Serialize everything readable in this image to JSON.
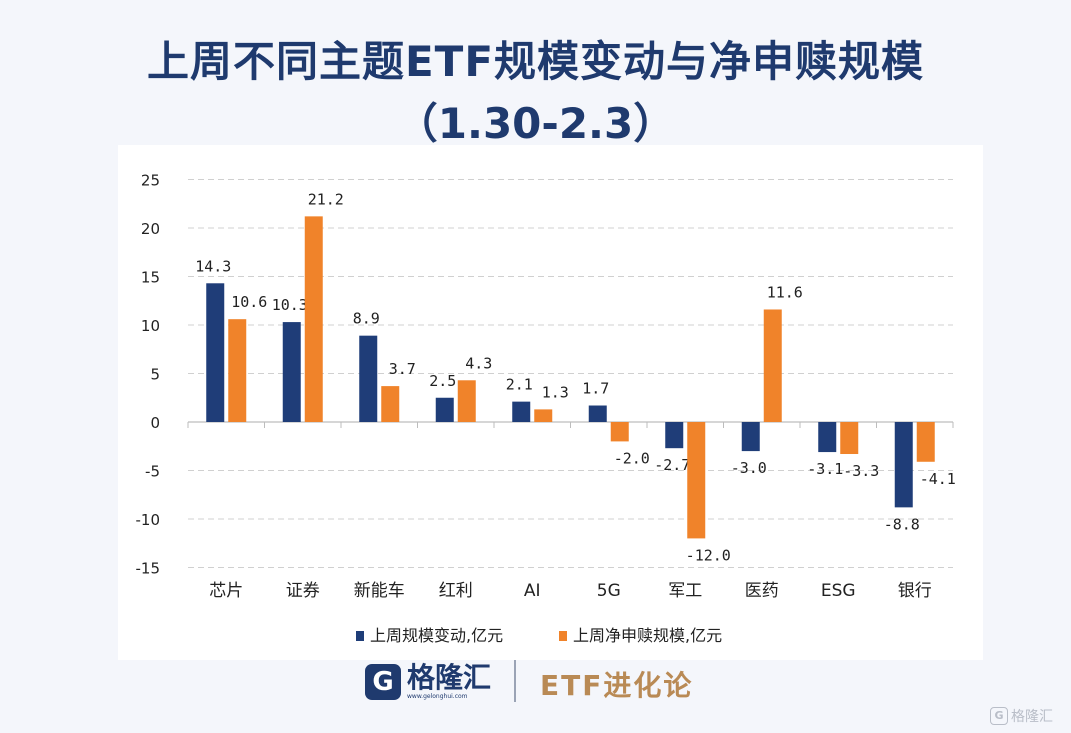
{
  "title_line1": "上周不同主题ETF规模变动与净申赎规模",
  "title_line2": "（1.30-2.3）",
  "chart_data": {
    "type": "bar",
    "title": "上周不同主题ETF规模变动与净申赎规模（1.30-2.3）",
    "categories": [
      "芯片",
      "证券",
      "新能车",
      "红利",
      "AI",
      "5G",
      "军工",
      "医药",
      "ESG",
      "银行"
    ],
    "series": [
      {
        "name": "上周规模变动,亿元",
        "color": "#1f3d78",
        "values": [
          14.3,
          10.3,
          8.9,
          2.5,
          2.1,
          1.7,
          -2.7,
          -3.0,
          -3.1,
          -8.8
        ],
        "labels": [
          "14.3",
          "10.3",
          "8.9",
          "2.5",
          "2.1",
          "1.7",
          "-2.7",
          "-3.0",
          "-3.1",
          "-8.8"
        ]
      },
      {
        "name": "上周净申赎规模,亿元",
        "color": "#f0832a",
        "values": [
          10.6,
          21.2,
          3.7,
          4.3,
          1.3,
          -2.0,
          -12.0,
          11.6,
          -3.3,
          -4.1
        ],
        "labels": [
          "10.6",
          "21.2",
          "3.7",
          "4.3",
          "1.3",
          "-2.0",
          "-12.0",
          "11.6",
          "-3.3",
          "-4.1"
        ]
      }
    ],
    "yticks": [
      "25",
      "20",
      "15",
      "10",
      "5",
      "0",
      "-5",
      "-10",
      "-15"
    ],
    "ylim": [
      -15,
      25
    ],
    "grid": true,
    "legend": "bottom-center"
  },
  "footer": {
    "logo_mark": "G",
    "logo_text": "格隆汇",
    "logo_url": "www.gelonghui.com",
    "brand": "ETF进化论"
  },
  "watermark": {
    "icon": "G",
    "text": "格隆汇"
  }
}
